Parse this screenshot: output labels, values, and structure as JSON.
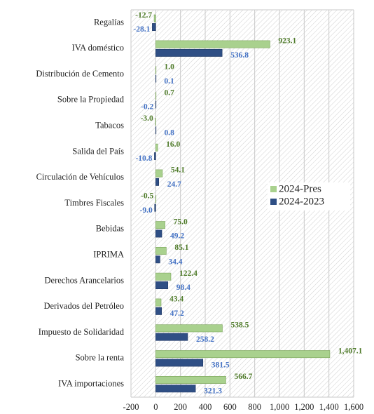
{
  "chart_data": {
    "type": "hbar",
    "categories": [
      "Regalías",
      "IVA doméstico",
      "Distribución de Cemento",
      "Sobre la Propiedad",
      "Tabacos",
      "Salida del País",
      "Circulación de Vehículos",
      "Timbres Fiscales",
      "Bebidas",
      "IPRIMA",
      "Derechos Arancelarios",
      "Derivados del Petróleo",
      "Impuesto de Solidaridad",
      "Sobre la renta",
      "IVA importaciones"
    ],
    "series": [
      {
        "name": "2024-Pres",
        "color": "#a9d18e",
        "label_color": "#4f7b2a",
        "values": [
          -12.7,
          923.1,
          1.0,
          0.7,
          -3.0,
          16.0,
          54.1,
          -0.5,
          75.0,
          85.1,
          122.4,
          43.4,
          538.5,
          1407.1,
          566.7
        ],
        "value_labels": [
          "-12.7",
          "923.1",
          "1.0",
          "0.7",
          "-3.0",
          "16.0",
          "54.1",
          "-0.5",
          "75.0",
          "85.1",
          "122.4",
          "43.4",
          "538.5",
          "1,407.1",
          "566.7"
        ]
      },
      {
        "name": "2024-2023",
        "color": "#2f4f85",
        "label_color": "#4472c4",
        "values": [
          -28.1,
          536.8,
          0.1,
          -0.2,
          0.8,
          -10.8,
          24.7,
          -9.0,
          49.2,
          34.4,
          98.4,
          47.2,
          258.2,
          381.5,
          321.3
        ],
        "value_labels": [
          "-28.1",
          "536.8",
          "0.1",
          "-0.2",
          "0.8",
          "-10.8",
          "24.7",
          "-9.0",
          "49.2",
          "34.4",
          "98.4",
          "47.2",
          "258.2",
          "381.5",
          "321.3"
        ]
      }
    ],
    "xlim": [
      -200,
      1600
    ],
    "xticks": [
      -200,
      0,
      200,
      400,
      600,
      800,
      {
        "value": 1000,
        "label": "1,000"
      },
      {
        "value": 1200,
        "label": "1,200"
      },
      {
        "value": 1400,
        "label": "1,400"
      },
      {
        "value": 1600,
        "label": "1,600"
      }
    ],
    "grid": true,
    "legend": "right"
  }
}
